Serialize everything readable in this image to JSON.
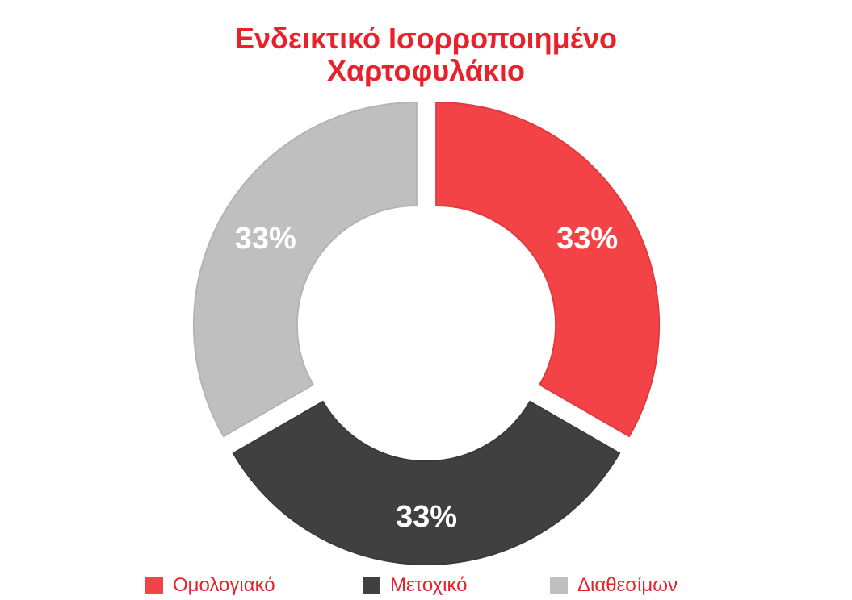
{
  "chart_data": {
    "type": "pie",
    "style": "donut",
    "title": "Ενδεικτικό Ισορροποιημένο Χαρτοφυλάκιο",
    "title_lines": [
      "Ενδεικτικό Ισορροποιημένο",
      "Χαρτοφυλάκιο"
    ],
    "categories": [
      "Ομολογιακό",
      "Μετοχικό",
      "Διαθεσίμων"
    ],
    "values": [
      33,
      33,
      33
    ],
    "data_labels": [
      "33%",
      "33%",
      "33%"
    ],
    "colors": [
      "#f44347",
      "#404040",
      "#bfbfbf"
    ],
    "exploded": true,
    "legend_position": "bottom"
  },
  "colors": {
    "title": "#e8212a",
    "legend_text": "#e8212a",
    "data_label": "#ffffff"
  }
}
